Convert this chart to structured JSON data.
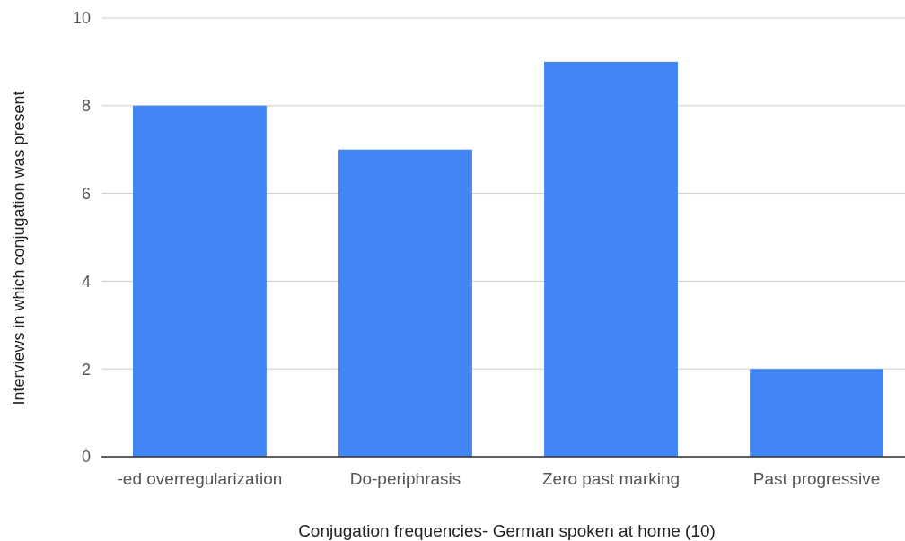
{
  "chart_data": {
    "type": "bar",
    "xlabel": "Conjugation frequencies- German spoken at home (10)",
    "ylabel": "Interviews in which conjugation was present",
    "categories": [
      "-ed overregularization",
      "Do-periphrasis",
      "Zero past marking",
      "Past progressive"
    ],
    "values": [
      8,
      7,
      9,
      2
    ],
    "color": "#4285f4",
    "ylim": [
      0,
      10
    ],
    "yticks": [
      0,
      2,
      4,
      6,
      8,
      10
    ],
    "grid": "y"
  }
}
